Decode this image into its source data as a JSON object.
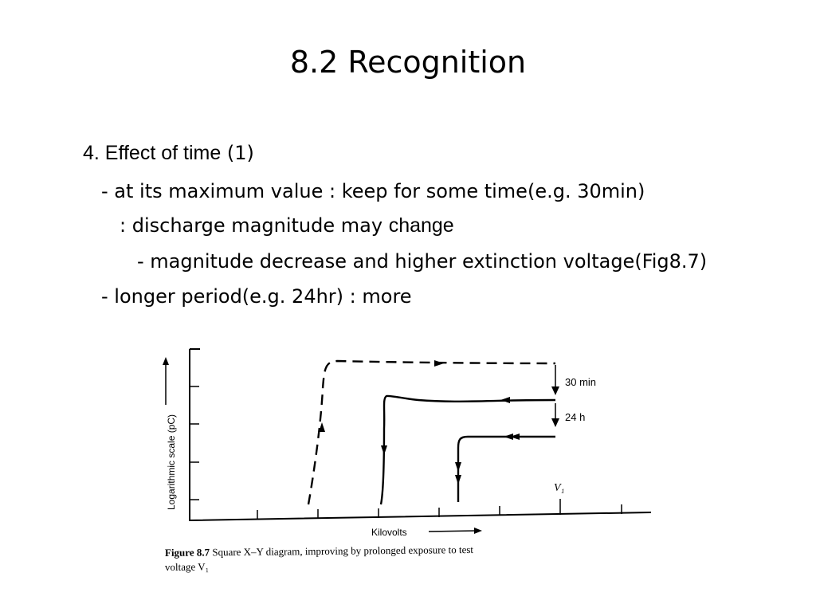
{
  "title": "8.2 Recognition",
  "bullets": {
    "b1_num": "4. ",
    "b1_highlight": "Effect of time",
    "b1_rest": " (1)",
    "b2": "- at its maximum value : keep for some time(e.g. 30min)",
    "b3_text": ": discharge magnitude may ",
    "b3_highlight": "change",
    "b4": "- magnitude decrease and higher extinction voltage(Fig8.7)",
    "b5": "- longer period(e.g. 24hr) : more"
  },
  "figure": {
    "ylabel": "Logarithmic scale (pC)",
    "xlabel": "Kilovolts",
    "marker_v1": "V₁",
    "annotation_30": "30 min",
    "annotation_24": "24 h",
    "caption_label": "Figure 8.7",
    "caption_text": " Square X–Y diagram, improving by prolonged exposure to test",
    "caption_line2": "voltage V₁"
  }
}
